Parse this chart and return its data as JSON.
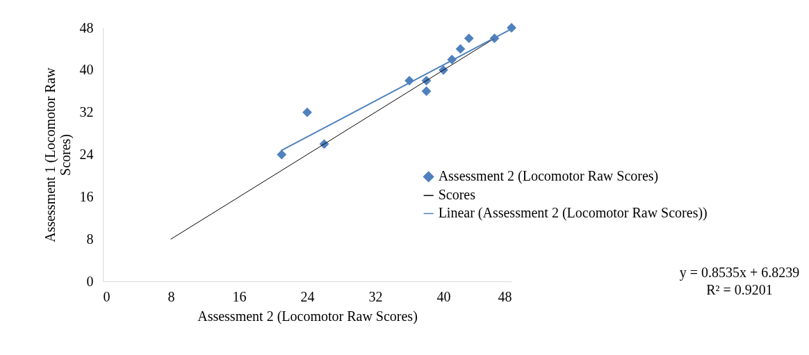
{
  "chart_data": {
    "type": "scatter",
    "xlabel": "Assessment 2 (Locomotor Raw Scores)",
    "ylabel": "Assessment 1 (Locomotor Raw Scores)",
    "xlim": [
      0,
      48
    ],
    "ylim": [
      0,
      48
    ],
    "xticks": [
      0,
      8,
      16,
      24,
      32,
      40,
      48
    ],
    "yticks": [
      0,
      8,
      16,
      24,
      32,
      40,
      48
    ],
    "grid": false,
    "legend": "right",
    "series": [
      {
        "name": "Assessment 2 (Locomotor Raw Scores)",
        "marker": "diamond",
        "color": "#4f81bd",
        "x": [
          21,
          24,
          26,
          36,
          38,
          38,
          40,
          41,
          42,
          43,
          46,
          48
        ],
        "values": [
          24,
          32,
          26,
          38,
          38,
          36,
          40,
          42,
          44,
          46,
          46,
          48
        ]
      },
      {
        "name": "Scores",
        "type": "line",
        "marker": "none",
        "color": "#000000",
        "x": [
          8,
          46
        ],
        "values": [
          8,
          46
        ]
      },
      {
        "name": "Linear (Assessment 2 (Locomotor Raw Scores))",
        "type": "line",
        "marker": "none",
        "color": "#4f81bd",
        "x": [
          21,
          48
        ],
        "values": [
          24.8,
          47.8
        ]
      }
    ],
    "annotations": [
      "y = 0.8535x + 6.8239",
      "R² = 0.9201"
    ]
  }
}
